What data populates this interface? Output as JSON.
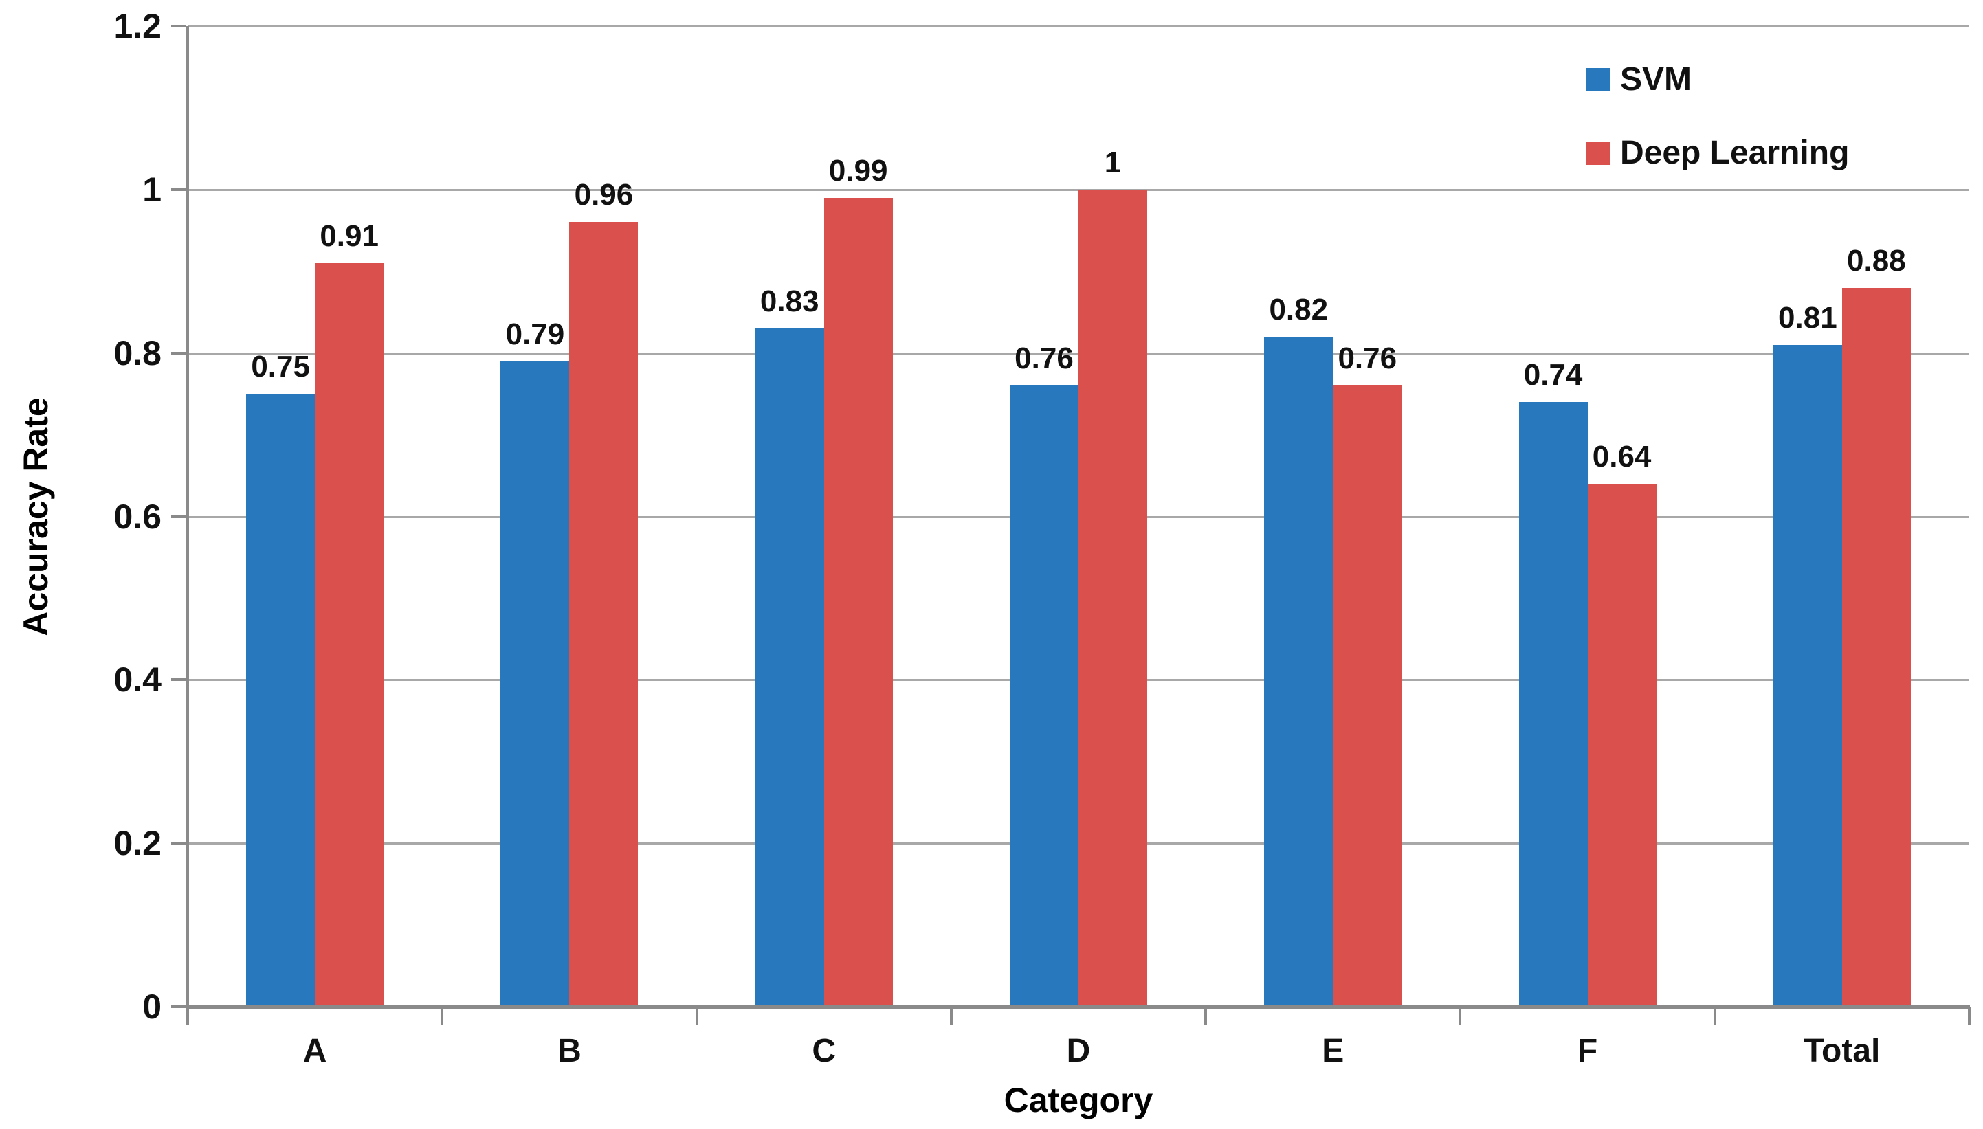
{
  "chart_data": {
    "type": "bar",
    "title": "",
    "categories": [
      "A",
      "B",
      "C",
      "D",
      "E",
      "F",
      "Total"
    ],
    "series": [
      {
        "name": "SVM",
        "color": "#2878BE",
        "values": [
          0.75,
          0.79,
          0.83,
          0.76,
          0.82,
          0.74,
          0.81
        ],
        "labels": [
          "0.75",
          "0.79",
          "0.83",
          "0.76",
          "0.82",
          "0.74",
          "0.81"
        ]
      },
      {
        "name": "Deep Learning",
        "color": "#D9504C",
        "values": [
          0.91,
          0.96,
          0.99,
          1,
          0.76,
          0.64,
          0.88
        ],
        "labels": [
          "0.91",
          "0.96",
          "0.99",
          "1",
          "0.76",
          "0.64",
          "0.88"
        ]
      }
    ],
    "xlabel": "Category",
    "ylabel": "Accuracy Rate",
    "ylim": [
      0,
      1.2
    ],
    "yticks": [
      0,
      0.2,
      0.4,
      0.6,
      0.8,
      1,
      1.2
    ],
    "ytick_labels": [
      "0",
      "0.2",
      "0.4",
      "0.6",
      "0.8",
      "1",
      "1.2"
    ],
    "grid": true,
    "legend_position": "top-right-inside",
    "colors": {
      "gridline": "#A8A8A8",
      "axis": "#8A8A8A",
      "text": "#111111"
    }
  }
}
